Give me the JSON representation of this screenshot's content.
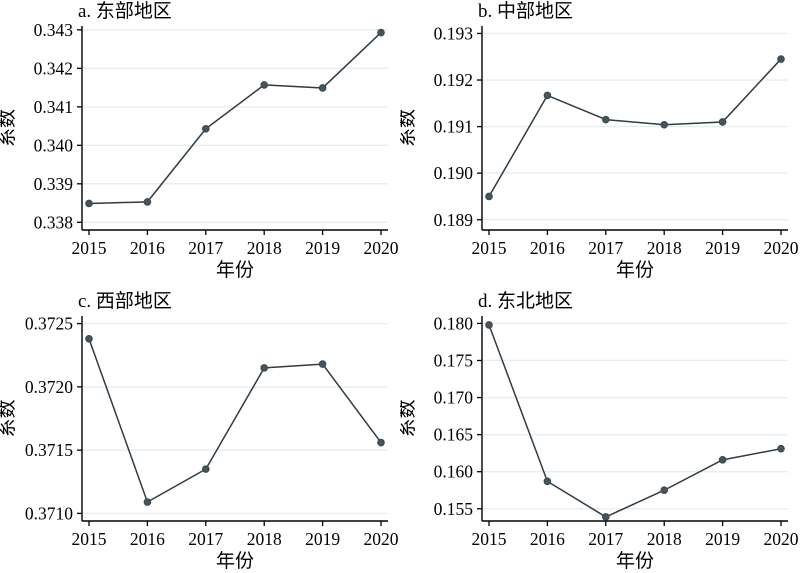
{
  "figure": {
    "description_visible_text": "",
    "colors": {
      "background": "#ffffff",
      "line": "#2f3b41",
      "marker": "#46545e",
      "marker_edge": "#39464e",
      "grid": "#e4eeef",
      "axis": "#000000",
      "text": "#000000"
    },
    "marker_style": "filled-circle"
  },
  "chart_data": [
    {
      "id": "a",
      "type": "line",
      "title": "a. 东部地区",
      "xlabel": "年份",
      "ylabel": "系数",
      "categories": [
        "2015",
        "2016",
        "2017",
        "2018",
        "2019",
        "2020"
      ],
      "values": [
        0.33849,
        0.33853,
        0.34043,
        0.34157,
        0.34149,
        0.34293
      ],
      "yticks": [
        0.338,
        0.339,
        0.34,
        0.341,
        0.342,
        0.343
      ],
      "ytick_labels": [
        "0.338",
        "0.339",
        "0.340",
        "0.341",
        "0.342",
        "0.343"
      ],
      "ylim": [
        0.3378,
        0.3431
      ],
      "grid": true,
      "legend": "none"
    },
    {
      "id": "b",
      "type": "line",
      "title": "b. 中部地区",
      "xlabel": "年份",
      "ylabel": "系数",
      "categories": [
        "2015",
        "2016",
        "2017",
        "2018",
        "2019",
        "2020"
      ],
      "values": [
        0.1895,
        0.19167,
        0.19115,
        0.19104,
        0.1911,
        0.19245
      ],
      "yticks": [
        0.189,
        0.19,
        0.191,
        0.192,
        0.193
      ],
      "ytick_labels": [
        "0.189",
        "0.190",
        "0.191",
        "0.192",
        "0.193"
      ],
      "ylim": [
        0.18878,
        0.19316
      ],
      "grid": true,
      "legend": "none"
    },
    {
      "id": "c",
      "type": "line",
      "title": "c. 西部地区",
      "xlabel": "年份",
      "ylabel": "系数",
      "categories": [
        "2015",
        "2016",
        "2017",
        "2018",
        "2019",
        "2020"
      ],
      "values": [
        0.37238,
        0.37109,
        0.37135,
        0.37215,
        0.37218,
        0.37156
      ],
      "yticks": [
        0.371,
        0.3715,
        0.372,
        0.3725
      ],
      "ytick_labels": [
        "0.3710",
        "0.3715",
        "0.3720",
        "0.3725"
      ],
      "ylim": [
        0.37094,
        0.37256
      ],
      "grid": true,
      "legend": "none"
    },
    {
      "id": "d",
      "type": "line",
      "title": "d. 东北地区",
      "xlabel": "年份",
      "ylabel": "系数",
      "categories": [
        "2015",
        "2016",
        "2017",
        "2018",
        "2019",
        "2020"
      ],
      "values": [
        0.1798,
        0.1587,
        0.1539,
        0.1575,
        0.1616,
        0.1631
      ],
      "yticks": [
        0.155,
        0.16,
        0.165,
        0.17,
        0.175,
        0.18
      ],
      "ytick_labels": [
        "0.155",
        "0.160",
        "0.165",
        "0.170",
        "0.175",
        "0.180"
      ],
      "ylim": [
        0.15335,
        0.181
      ],
      "grid": true,
      "legend": "none"
    }
  ]
}
